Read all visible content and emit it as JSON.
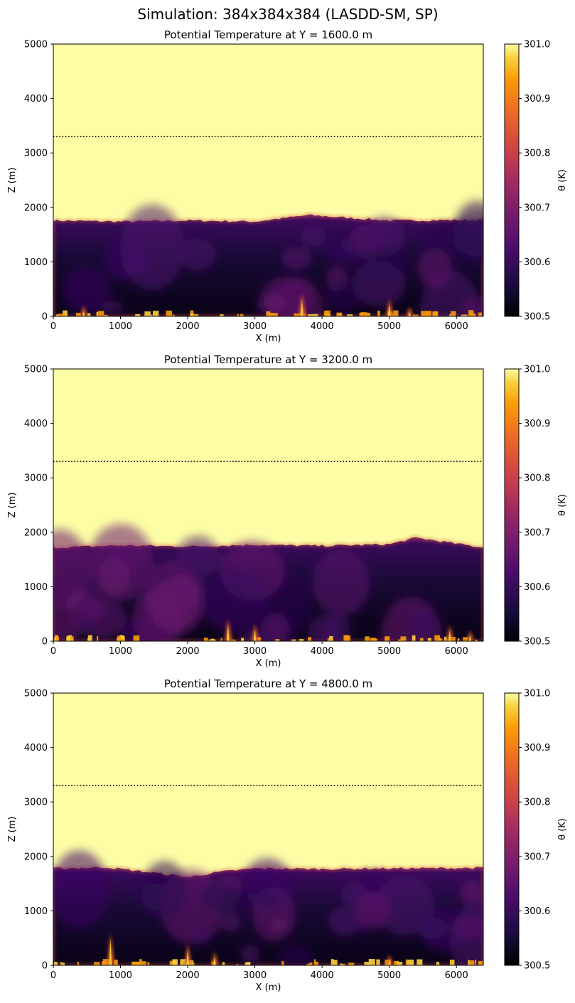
{
  "figure": {
    "suptitle": "Simulation: 384x384x384 (LASDD-SM, SP)"
  },
  "colors": {
    "ambient": "#fcfda4",
    "colormap": "inferno"
  },
  "chart_data": [
    {
      "type": "heatmap",
      "title": "Potential Temperature at Y = 1600.0 m",
      "xlabel": "X (m)",
      "ylabel": "Z (m)",
      "xlim": [
        0,
        6400
      ],
      "ylim": [
        0,
        5000
      ],
      "xticks": [
        0,
        1000,
        2000,
        3000,
        4000,
        5000,
        6000
      ],
      "yticks": [
        0,
        1000,
        2000,
        3000,
        4000,
        5000
      ],
      "colorbar": {
        "label": "θ (K)",
        "range": [
          300.5,
          301.0
        ],
        "ticks": [
          "300.5",
          "300.6",
          "300.7",
          "300.8",
          "300.9",
          "301.0"
        ]
      },
      "reference_line": {
        "z": 3300,
        "style": "dotted"
      },
      "boundary_layer_top": [
        {
          "x": 0,
          "z": 1760
        },
        {
          "x": 1000,
          "z": 1740
        },
        {
          "x": 2000,
          "z": 1760
        },
        {
          "x": 3000,
          "z": 1740
        },
        {
          "x": 3800,
          "z": 1860
        },
        {
          "x": 4500,
          "z": 1800
        },
        {
          "x": 5000,
          "z": 1760
        },
        {
          "x": 6400,
          "z": 1770
        }
      ],
      "plumes": [
        {
          "x": 450,
          "z": 200
        },
        {
          "x": 3700,
          "z": 420
        },
        {
          "x": 5000,
          "z": 330
        },
        {
          "x": 5300,
          "z": 180
        }
      ]
    },
    {
      "type": "heatmap",
      "title": "Potential Temperature at Y = 3200.0 m",
      "xlabel": "X (m)",
      "ylabel": "Z (m)",
      "xlim": [
        0,
        6400
      ],
      "ylim": [
        0,
        5000
      ],
      "xticks": [
        0,
        1000,
        2000,
        3000,
        4000,
        5000,
        6000
      ],
      "yticks": [
        0,
        1000,
        2000,
        3000,
        4000,
        5000
      ],
      "colorbar": {
        "label": "θ (K)",
        "range": [
          300.5,
          301.0
        ],
        "ticks": [
          "300.5",
          "300.6",
          "300.7",
          "300.8",
          "300.9",
          "301.0"
        ]
      },
      "reference_line": {
        "z": 3300,
        "style": "dotted"
      },
      "boundary_layer_top": [
        {
          "x": 0,
          "z": 1720
        },
        {
          "x": 1000,
          "z": 1760
        },
        {
          "x": 2000,
          "z": 1740
        },
        {
          "x": 3000,
          "z": 1770
        },
        {
          "x": 4000,
          "z": 1750
        },
        {
          "x": 5000,
          "z": 1780
        },
        {
          "x": 5400,
          "z": 1900
        },
        {
          "x": 6400,
          "z": 1720
        }
      ],
      "plumes": [
        {
          "x": 2600,
          "z": 420
        },
        {
          "x": 3000,
          "z": 320
        },
        {
          "x": 5900,
          "z": 300
        },
        {
          "x": 6200,
          "z": 200
        }
      ]
    },
    {
      "type": "heatmap",
      "title": "Potential Temperature at Y = 4800.0 m",
      "xlabel": "X (m)",
      "ylabel": "Z (m)",
      "xlim": [
        0,
        6400
      ],
      "ylim": [
        0,
        5000
      ],
      "xticks": [
        0,
        1000,
        2000,
        3000,
        4000,
        5000,
        6000
      ],
      "yticks": [
        0,
        1000,
        2000,
        3000,
        4000,
        5000
      ],
      "colorbar": {
        "label": "θ (K)",
        "range": [
          300.5,
          301.0
        ],
        "ticks": [
          "300.5",
          "300.6",
          "300.7",
          "300.8",
          "300.9",
          "301.0"
        ]
      },
      "reference_line": {
        "z": 3300,
        "style": "dotted"
      },
      "boundary_layer_top": [
        {
          "x": 0,
          "z": 1780
        },
        {
          "x": 800,
          "z": 1800
        },
        {
          "x": 1500,
          "z": 1700
        },
        {
          "x": 2000,
          "z": 1620
        },
        {
          "x": 2500,
          "z": 1720
        },
        {
          "x": 3000,
          "z": 1780
        },
        {
          "x": 4000,
          "z": 1770
        },
        {
          "x": 5000,
          "z": 1780
        },
        {
          "x": 6400,
          "z": 1790
        }
      ],
      "plumes": [
        {
          "x": 850,
          "z": 600
        },
        {
          "x": 2000,
          "z": 400
        },
        {
          "x": 2400,
          "z": 250
        },
        {
          "x": 5000,
          "z": 200
        }
      ]
    }
  ]
}
